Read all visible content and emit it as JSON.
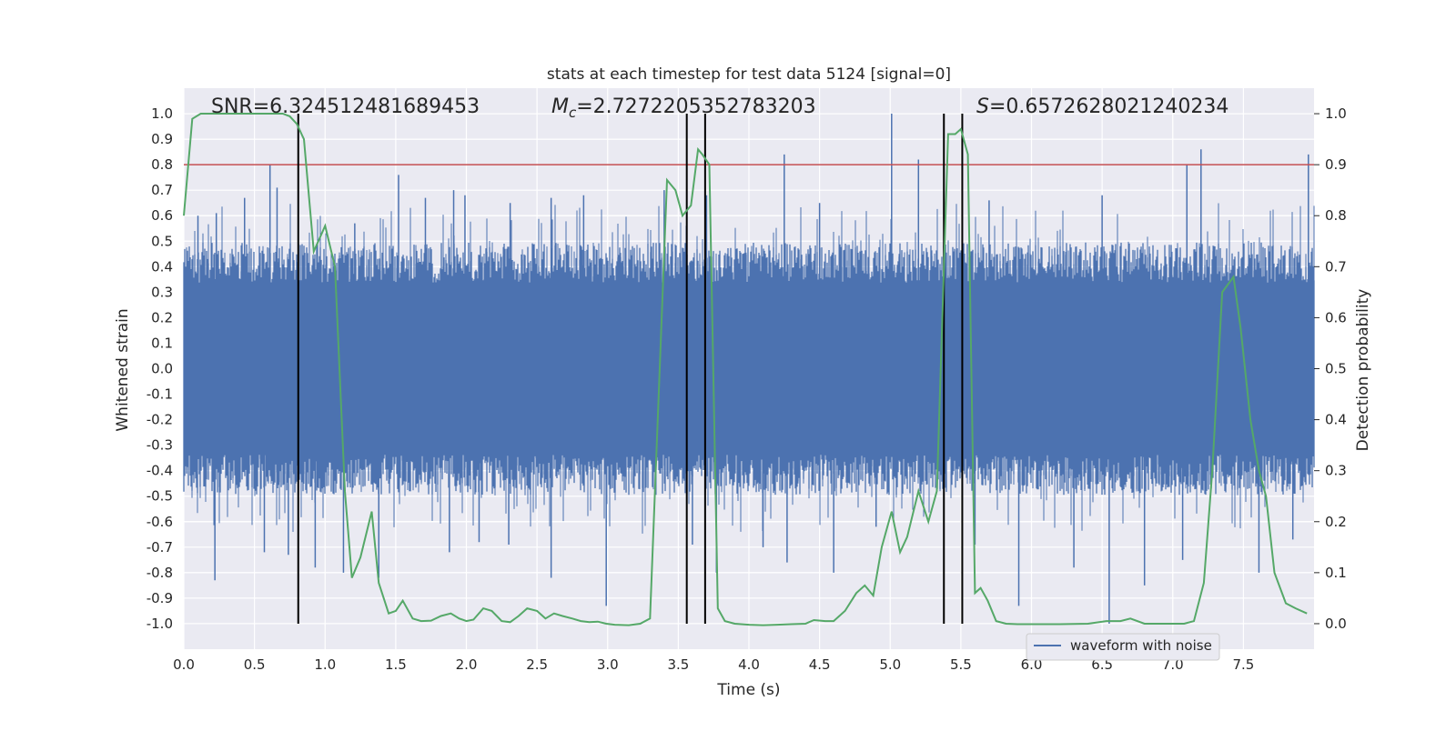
{
  "chart_data": {
    "type": "line",
    "title": "stats at each timestep for test data 5124 [signal=0]",
    "xlabel": "Time (s)",
    "ylabel": "Whitened strain",
    "y2label": "Detection probability",
    "xlim": [
      0.0,
      8.0
    ],
    "ylim": [
      -1.1,
      1.1
    ],
    "y2lim": [
      -0.05,
      1.05
    ],
    "x_ticks": [
      0.0,
      0.5,
      1.0,
      1.5,
      2.0,
      2.5,
      3.0,
      3.5,
      4.0,
      4.5,
      5.0,
      5.5,
      6.0,
      6.5,
      7.0,
      7.5
    ],
    "x_tick_labels": [
      "0.0",
      "0.5",
      "1.0",
      "1.5",
      "2.0",
      "2.5",
      "3.0",
      "3.5",
      "4.0",
      "4.5",
      "5.0",
      "5.5",
      "6.0",
      "6.5",
      "7.0",
      "7.5"
    ],
    "y_ticks": [
      1.0,
      0.9,
      0.8,
      0.7,
      0.6,
      0.5,
      0.4,
      0.3,
      0.2,
      0.1,
      0.0,
      -0.1,
      -0.2,
      -0.3,
      -0.4,
      -0.5,
      -0.6,
      -0.7,
      -0.8,
      -0.9,
      -1.0
    ],
    "y_tick_labels": [
      "1.0",
      "0.9",
      "0.8",
      "0.7",
      "0.6",
      "0.5",
      "0.4",
      "0.3",
      "0.2",
      "0.1",
      "0.0",
      "-0.1",
      "-0.2",
      "-0.3",
      "-0.4",
      "-0.5",
      "-0.6",
      "-0.7",
      "-0.8",
      "-0.9",
      "-1.0"
    ],
    "y2_ticks": [
      1.0,
      0.9,
      0.8,
      0.7,
      0.6,
      0.5,
      0.4,
      0.3,
      0.2,
      0.1,
      0.0
    ],
    "y2_tick_labels": [
      "1.0",
      "0.9",
      "0.8",
      "0.7",
      "0.6",
      "0.5",
      "0.4",
      "0.3",
      "0.2",
      "0.1",
      "0.0"
    ],
    "annotations": {
      "snr": "SNR=6.324512481689453",
      "mc_symbol": "M",
      "mc_subscript": "c",
      "mc_value": "=2.7272205352783203",
      "s_symbol": "S",
      "s_value": "=0.6572628021240234"
    },
    "threshold": {
      "value": 0.9,
      "axis": "right",
      "color": "#c44e52"
    },
    "vertical_lines": [
      0.81,
      3.56,
      3.69,
      5.38,
      5.51
    ],
    "waveform_series": {
      "name": "waveform with noise",
      "color": "#4c72b0",
      "envelope_abs": 0.45,
      "spikes": [
        [
          0.1,
          0.6
        ],
        [
          0.23,
          0.61
        ],
        [
          0.43,
          0.67
        ],
        [
          0.61,
          0.8
        ],
        [
          0.66,
          0.71
        ],
        [
          0.81,
          0.77
        ],
        [
          1.21,
          0.57
        ],
        [
          1.52,
          0.76
        ],
        [
          1.71,
          0.67
        ],
        [
          1.91,
          0.7
        ],
        [
          1.99,
          0.68
        ],
        [
          2.31,
          0.65
        ],
        [
          2.6,
          0.67
        ],
        [
          2.83,
          0.68
        ],
        [
          3.4,
          0.7
        ],
        [
          3.7,
          0.68
        ],
        [
          4.25,
          0.84
        ],
        [
          4.5,
          0.65
        ],
        [
          5.01,
          1.0
        ],
        [
          5.2,
          0.82
        ],
        [
          5.7,
          0.66
        ],
        [
          6.5,
          0.68
        ],
        [
          7.1,
          0.8
        ],
        [
          7.2,
          0.86
        ],
        [
          7.96,
          0.84
        ],
        [
          0.22,
          -0.83
        ],
        [
          0.57,
          -0.72
        ],
        [
          0.74,
          -0.73
        ],
        [
          0.93,
          -0.78
        ],
        [
          1.13,
          -0.8
        ],
        [
          1.38,
          -0.82
        ],
        [
          1.88,
          -0.72
        ],
        [
          2.09,
          -0.68
        ],
        [
          2.3,
          -0.69
        ],
        [
          2.6,
          -0.82
        ],
        [
          2.99,
          -0.93
        ],
        [
          3.6,
          -0.69
        ],
        [
          3.77,
          -0.8
        ],
        [
          4.1,
          -0.7
        ],
        [
          4.27,
          -0.76
        ],
        [
          4.6,
          -0.8
        ],
        [
          4.9,
          -0.62
        ],
        [
          5.6,
          -0.69
        ],
        [
          5.91,
          -0.93
        ],
        [
          6.3,
          -0.78
        ],
        [
          6.55,
          -1.0
        ],
        [
          6.8,
          -0.85
        ],
        [
          7.07,
          -0.75
        ],
        [
          7.61,
          -0.8
        ],
        [
          7.85,
          -0.67
        ]
      ]
    },
    "probability_series": {
      "name": "detection probability",
      "color": "#55a868",
      "x": [
        0.0,
        0.06,
        0.12,
        0.2,
        0.3,
        0.4,
        0.5,
        0.6,
        0.7,
        0.75,
        0.8,
        0.85,
        0.92,
        1.0,
        1.07,
        1.14,
        1.19,
        1.25,
        1.33,
        1.38,
        1.45,
        1.5,
        1.55,
        1.62,
        1.68,
        1.75,
        1.82,
        1.89,
        1.95,
        2.0,
        2.05,
        2.12,
        2.18,
        2.25,
        2.31,
        2.37,
        2.43,
        2.5,
        2.56,
        2.62,
        2.68,
        2.75,
        2.81,
        2.87,
        2.93,
        2.99,
        3.05,
        3.15,
        3.23,
        3.3,
        3.42,
        3.48,
        3.53,
        3.59,
        3.64,
        3.67,
        3.72,
        3.78,
        3.83,
        3.9,
        4.0,
        4.1,
        4.2,
        4.3,
        4.4,
        4.46,
        4.54,
        4.6,
        4.68,
        4.76,
        4.82,
        4.88,
        4.94,
        5.01,
        5.07,
        5.12,
        5.2,
        5.27,
        5.33,
        5.41,
        5.46,
        5.5,
        5.55,
        5.6,
        5.64,
        5.69,
        5.75,
        5.82,
        5.9,
        6.0,
        6.2,
        6.4,
        6.53,
        6.63,
        6.7,
        6.8,
        6.9,
        7.0,
        7.08,
        7.15,
        7.22,
        7.28,
        7.35,
        7.43,
        7.48,
        7.55,
        7.61,
        7.66,
        7.72,
        7.8,
        7.87,
        7.95
      ],
      "y": [
        0.8,
        0.99,
        1.0,
        1.0,
        1.0,
        1.0,
        1.0,
        1.0,
        1.0,
        0.995,
        0.98,
        0.95,
        0.73,
        0.78,
        0.7,
        0.26,
        0.09,
        0.13,
        0.22,
        0.08,
        0.02,
        0.025,
        0.045,
        0.01,
        0.005,
        0.006,
        0.015,
        0.02,
        0.01,
        0.005,
        0.008,
        0.03,
        0.025,
        0.005,
        0.003,
        0.015,
        0.03,
        0.025,
        0.01,
        0.02,
        0.015,
        0.01,
        0.005,
        0.003,
        0.004,
        0.0,
        -0.002,
        -0.003,
        0.0,
        0.01,
        0.87,
        0.85,
        0.8,
        0.82,
        0.93,
        0.92,
        0.9,
        0.03,
        0.005,
        0.0,
        -0.002,
        -0.003,
        -0.002,
        -0.001,
        0.0,
        0.007,
        0.005,
        0.005,
        0.025,
        0.06,
        0.075,
        0.055,
        0.15,
        0.22,
        0.14,
        0.17,
        0.26,
        0.2,
        0.26,
        0.96,
        0.96,
        0.97,
        0.92,
        0.06,
        0.07,
        0.045,
        0.005,
        0.0,
        -0.001,
        -0.001,
        -0.001,
        0.0,
        0.005,
        0.005,
        0.01,
        0.0,
        0.0,
        0.0,
        0.0,
        0.005,
        0.08,
        0.3,
        0.65,
        0.68,
        0.58,
        0.4,
        0.3,
        0.25,
        0.1,
        0.04,
        0.03,
        0.02
      ]
    },
    "legend": {
      "placement": "lower-right",
      "entries": [
        "waveform with noise"
      ]
    },
    "grid": true,
    "background_color": "#eaeaf2"
  }
}
